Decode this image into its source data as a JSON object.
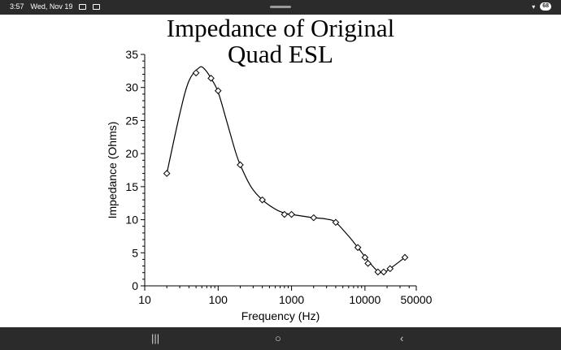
{
  "status_bar": {
    "time": "3:57",
    "date": "Wed, Nov 19",
    "battery": "68"
  },
  "nav_bar": {
    "recents_icon": "recents-icon",
    "home_icon": "home-icon",
    "back_icon": "back-icon"
  },
  "chart_data": {
    "type": "line",
    "title_line1": "Impedance of Original",
    "title_line2": "Quad ESL",
    "xlabel": "Frequency (Hz)",
    "ylabel": "Impedance (Ohms)",
    "x_scale": "log",
    "xlim": [
      10,
      50000
    ],
    "ylim": [
      0,
      35
    ],
    "x_ticks": [
      10,
      100,
      1000,
      10000,
      50000
    ],
    "x_tick_labels": [
      "10",
      "100",
      "1000",
      "10000",
      "50000"
    ],
    "y_ticks": [
      0,
      5,
      10,
      15,
      20,
      25,
      30,
      35
    ],
    "y_tick_labels": [
      "0",
      "5",
      "10",
      "15",
      "20",
      "25",
      "30",
      "35"
    ],
    "grid": false,
    "marker": "diamond",
    "series": [
      {
        "name": "Impedance",
        "x": [
          20,
          50,
          80,
          100,
          200,
          400,
          800,
          1000,
          2000,
          4000,
          8000,
          10000,
          11000,
          15000,
          18000,
          22000,
          35000
        ],
        "y": [
          17,
          32.2,
          31.4,
          29.5,
          18.3,
          13,
          10.8,
          10.8,
          10.3,
          9.6,
          5.8,
          4.3,
          3.4,
          2.1,
          2.1,
          2.6,
          4.3
        ]
      }
    ],
    "curve_x": [
      20,
      30,
      40,
      55,
      65,
      80,
      100,
      130,
      170,
      200,
      280,
      400,
      600,
      800,
      1000,
      1500,
      2000,
      3000,
      4000,
      6000,
      8000,
      10000,
      12000,
      15000,
      18000,
      22000,
      35000
    ],
    "curve_y": [
      17,
      26,
      31,
      33,
      32.8,
      31.4,
      29.3,
      25,
      20.5,
      18.3,
      15,
      13,
      11.6,
      11,
      10.8,
      10.5,
      10.3,
      10.1,
      9.6,
      7.5,
      5.8,
      4.4,
      3.3,
      2.2,
      2.0,
      2.6,
      4.3
    ]
  }
}
